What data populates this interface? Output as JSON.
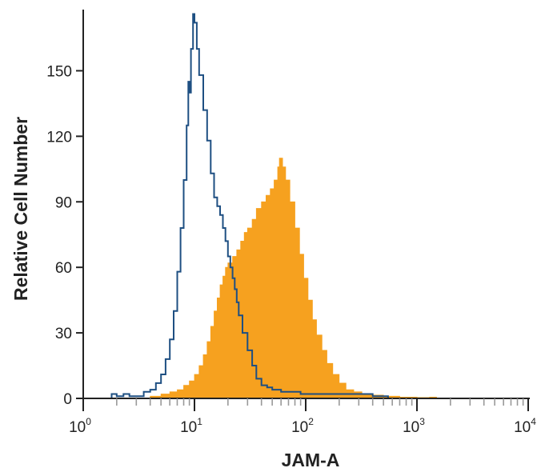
{
  "chart_data": {
    "type": "area",
    "title": "",
    "xlabel": "JAM-A",
    "ylabel": "Relative Cell Number",
    "xscale": "log",
    "xlim": [
      1,
      10000
    ],
    "ylim": [
      0,
      178
    ],
    "x_ticks": [
      {
        "base": "10",
        "exp": "0",
        "value": 1
      },
      {
        "base": "10",
        "exp": "1",
        "value": 10
      },
      {
        "base": "10",
        "exp": "2",
        "value": 100
      },
      {
        "base": "10",
        "exp": "3",
        "value": 1000
      },
      {
        "base": "10",
        "exp": "4",
        "value": 10000
      }
    ],
    "y_ticks": [
      {
        "label": "0",
        "value": 0
      },
      {
        "label": "30",
        "value": 30
      },
      {
        "label": "60",
        "value": 60
      },
      {
        "label": "90",
        "value": 90
      },
      {
        "label": "120",
        "value": 120
      },
      {
        "label": "150",
        "value": 150
      }
    ],
    "grid": false,
    "legend": "none",
    "series": [
      {
        "style": "filled",
        "color": "#f6a11f",
        "points": [
          [
            3,
            0
          ],
          [
            4,
            1
          ],
          [
            5,
            2
          ],
          [
            6,
            3
          ],
          [
            7,
            4
          ],
          [
            8,
            6
          ],
          [
            9,
            8
          ],
          [
            10,
            11
          ],
          [
            11,
            15
          ],
          [
            12,
            20
          ],
          [
            13,
            26
          ],
          [
            14,
            33
          ],
          [
            15,
            40
          ],
          [
            16,
            46
          ],
          [
            17,
            52
          ],
          [
            18,
            56
          ],
          [
            19,
            60
          ],
          [
            20,
            62
          ],
          [
            22,
            65
          ],
          [
            24,
            68
          ],
          [
            26,
            72
          ],
          [
            28,
            76
          ],
          [
            30,
            78
          ],
          [
            33,
            82
          ],
          [
            36,
            87
          ],
          [
            40,
            90
          ],
          [
            44,
            93
          ],
          [
            48,
            96
          ],
          [
            52,
            100
          ],
          [
            56,
            106
          ],
          [
            58,
            110
          ],
          [
            62,
            106
          ],
          [
            66,
            100
          ],
          [
            72,
            90
          ],
          [
            80,
            78
          ],
          [
            88,
            66
          ],
          [
            96,
            55
          ],
          [
            105,
            45
          ],
          [
            115,
            36
          ],
          [
            125,
            29
          ],
          [
            140,
            22
          ],
          [
            155,
            16
          ],
          [
            175,
            11
          ],
          [
            200,
            7
          ],
          [
            230,
            4
          ],
          [
            270,
            3
          ],
          [
            320,
            2
          ],
          [
            400,
            1.5
          ],
          [
            500,
            1
          ],
          [
            700,
            0.6
          ],
          [
            1000,
            0.4
          ],
          [
            1300,
            0.6
          ],
          [
            1500,
            0
          ]
        ]
      },
      {
        "style": "outline",
        "color": "#1e4f82",
        "points": [
          [
            1.6,
            0
          ],
          [
            1.8,
            2
          ],
          [
            2,
            1
          ],
          [
            2.3,
            2
          ],
          [
            2.6,
            1
          ],
          [
            3,
            1
          ],
          [
            3.5,
            3
          ],
          [
            4,
            4
          ],
          [
            4.5,
            7
          ],
          [
            5,
            11
          ],
          [
            5.5,
            18
          ],
          [
            6,
            27
          ],
          [
            6.5,
            40
          ],
          [
            7,
            58
          ],
          [
            7.5,
            78
          ],
          [
            8,
            100
          ],
          [
            8.5,
            125
          ],
          [
            8.8,
            145
          ],
          [
            9,
            140
          ],
          [
            9.3,
            160
          ],
          [
            9.7,
            176
          ],
          [
            10,
            172
          ],
          [
            10.5,
            160
          ],
          [
            11,
            148
          ],
          [
            12,
            132
          ],
          [
            13,
            118
          ],
          [
            14,
            103
          ],
          [
            15,
            92
          ],
          [
            16,
            88
          ],
          [
            17,
            84
          ],
          [
            18,
            78
          ],
          [
            19,
            72
          ],
          [
            20,
            65
          ],
          [
            21,
            60
          ],
          [
            22,
            55
          ],
          [
            23,
            50
          ],
          [
            24,
            44
          ],
          [
            25,
            38
          ],
          [
            27,
            30
          ],
          [
            30,
            22
          ],
          [
            33,
            15
          ],
          [
            36,
            9
          ],
          [
            40,
            6
          ],
          [
            45,
            5
          ],
          [
            50,
            4
          ],
          [
            60,
            3
          ],
          [
            70,
            3
          ],
          [
            90,
            2
          ],
          [
            120,
            2
          ],
          [
            160,
            2
          ],
          [
            200,
            2
          ],
          [
            300,
            2
          ],
          [
            400,
            1
          ],
          [
            500,
            1
          ],
          [
            550,
            0
          ]
        ]
      }
    ]
  }
}
